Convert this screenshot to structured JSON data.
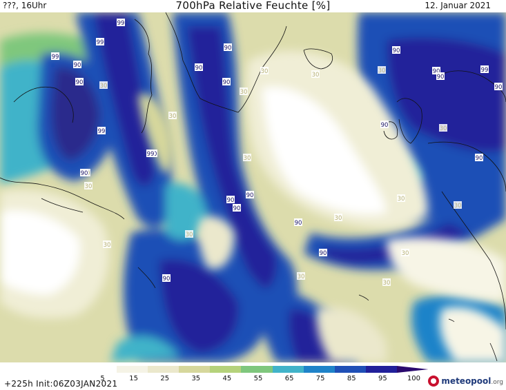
{
  "header": {
    "left": "???, 16Uhr",
    "title": "700hPa Relative Feuchte [%]",
    "date": "12. Januar 2021"
  },
  "footer": {
    "init": "+225h  Init:06Z03JAN2021",
    "logo_name": "meteopool",
    "logo_tld": ".org"
  },
  "colorbar": {
    "ticks": [
      "5",
      "15",
      "25",
      "35",
      "45",
      "55",
      "65",
      "75",
      "85",
      "95",
      "100"
    ],
    "colors": [
      "#ffffff",
      "#f5f3e6",
      "#ebe8cc",
      "#d6d79c",
      "#b5d27b",
      "#7fc77d",
      "#41b3c9",
      "#1f83c9",
      "#1f4fb6",
      "#21209a",
      "#2a0a6e"
    ]
  },
  "map": {
    "labels": [
      {
        "text": "99"
      },
      {
        "text": "99"
      },
      {
        "text": "99"
      },
      {
        "text": "90"
      },
      {
        "text": "90"
      },
      {
        "text": "30"
      },
      {
        "text": "99"
      },
      {
        "text": "90"
      },
      {
        "text": "30"
      },
      {
        "text": "99"
      },
      {
        "text": "90"
      },
      {
        "text": "30"
      },
      {
        "text": "90"
      },
      {
        "text": "90"
      },
      {
        "text": "30"
      },
      {
        "text": "90"
      },
      {
        "text": "30"
      },
      {
        "text": "30"
      },
      {
        "text": "30"
      },
      {
        "text": "90"
      },
      {
        "text": "90"
      },
      {
        "text": "99"
      },
      {
        "text": "90"
      },
      {
        "text": "90"
      },
      {
        "text": "30"
      },
      {
        "text": "90"
      },
      {
        "text": "90"
      },
      {
        "text": "30"
      },
      {
        "text": "30"
      },
      {
        "text": "30"
      },
      {
        "text": "90"
      },
      {
        "text": "90"
      },
      {
        "text": "30"
      },
      {
        "text": "90"
      },
      {
        "text": "90"
      },
      {
        "text": "30"
      },
      {
        "text": "30"
      },
      {
        "text": "90"
      },
      {
        "text": "30"
      },
      {
        "text": "30"
      },
      {
        "text": "90"
      },
      {
        "text": "30"
      },
      {
        "text": "30"
      }
    ]
  }
}
